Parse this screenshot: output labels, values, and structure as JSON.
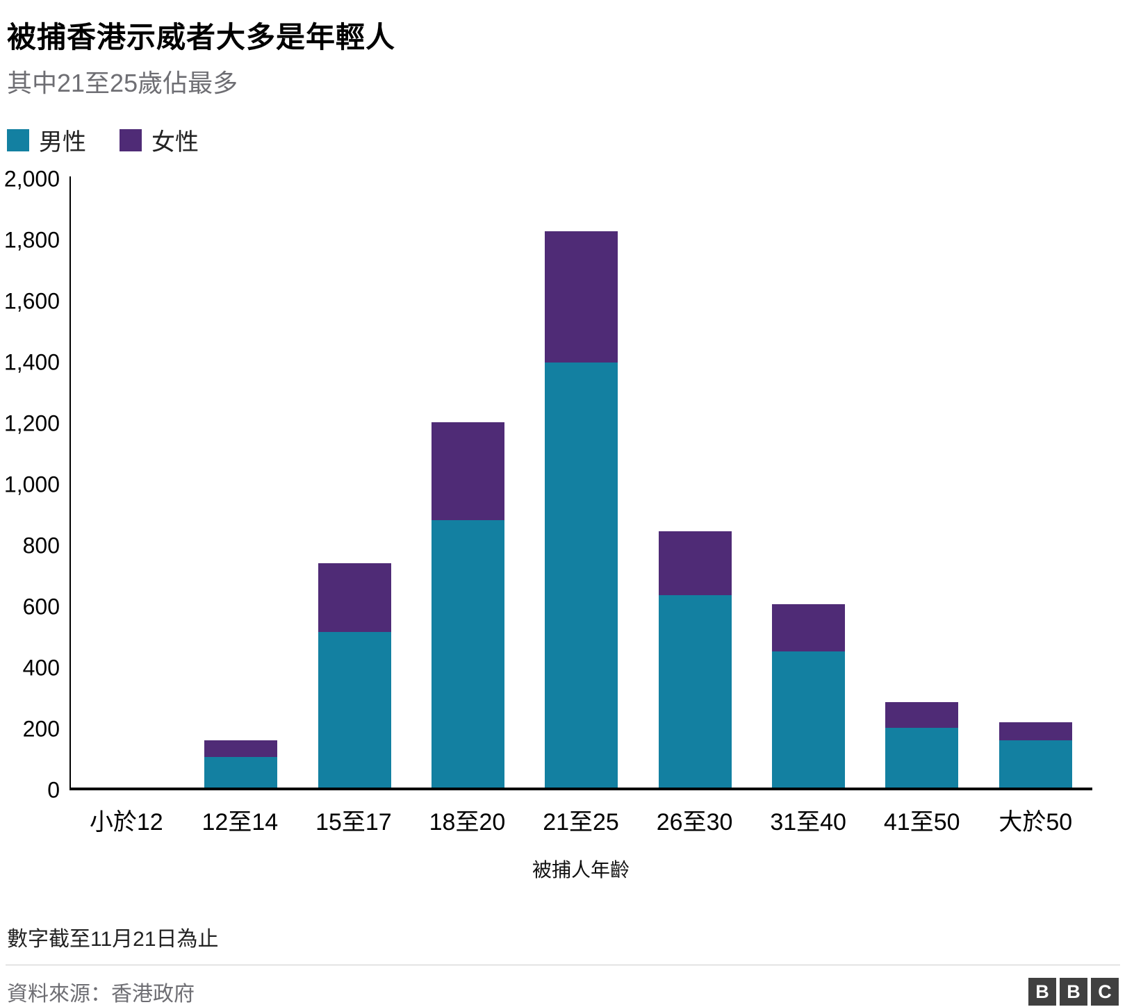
{
  "header": {
    "title": "被捕香港示威者大多是年輕人",
    "subtitle": "其中21至25歲佔最多"
  },
  "legend": [
    {
      "label": "男性",
      "color": "#1380a1"
    },
    {
      "label": "女性",
      "color": "#4f2b76"
    }
  ],
  "chart_data": {
    "type": "bar",
    "stacked": true,
    "title": "被捕香港示威者大多是年輕人",
    "subtitle": "其中21至25歲佔最多",
    "categories": [
      "小於12",
      "12至14",
      "15至17",
      "18至20",
      "21至25",
      "26至30",
      "31至40",
      "41至50",
      "大於50"
    ],
    "series": [
      {
        "name": "男性",
        "color": "#1380a1",
        "values": [
          0,
          100,
          510,
          875,
          1390,
          630,
          445,
          195,
          155
        ]
      },
      {
        "name": "女性",
        "color": "#4f2b76",
        "values": [
          0,
          55,
          225,
          320,
          430,
          210,
          155,
          85,
          60
        ]
      }
    ],
    "xlabel": "被捕人年齡",
    "ylabel": "",
    "ylim": [
      0,
      2000
    ],
    "ytick_step": 200,
    "ytick_labels": [
      "0",
      "200",
      "400",
      "600",
      "800",
      "1,000",
      "1,200",
      "1,400",
      "1,600",
      "1,800",
      "2,000"
    ],
    "grid": false,
    "legend_position": "top-left"
  },
  "footer": {
    "note": "數字截至11月21日為止",
    "source": "資料來源：香港政府",
    "logo_letters": [
      "B",
      "B",
      "C"
    ]
  }
}
